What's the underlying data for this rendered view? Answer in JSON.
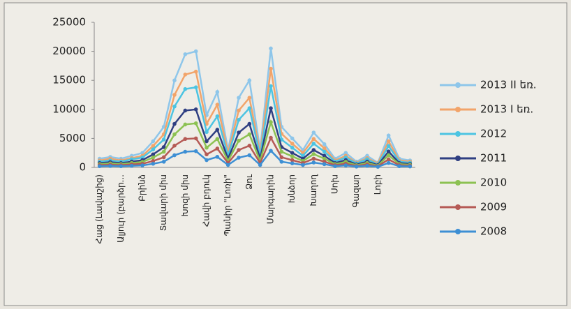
{
  "chart_data": {
    "type": "line",
    "categories": [
      "Հաց (Լավաշից)",
      null,
      "Ալյուր (բարձր...",
      null,
      "Բրինձ",
      null,
      "Տավարի միս",
      null,
      "Խոզի միս",
      null,
      "Հավի բդուկ",
      null,
      "Պանիր \"Լոռի\"",
      null,
      "Ձու",
      null,
      "Մարգարին",
      null,
      "Խնձոր",
      null,
      "Խաղող",
      null,
      "Սոխ",
      null,
      "Գազար",
      null,
      "Լոբի",
      null,
      null,
      null
    ],
    "series": [
      {
        "name": "2013 II եռ.",
        "color": "#8ec6ea",
        "values": [
          1500,
          1800,
          1500,
          2000,
          2500,
          4500,
          7000,
          15000,
          19500,
          20000,
          9000,
          13000,
          3000,
          12000,
          15000,
          3000,
          20500,
          7000,
          5000,
          3000,
          6000,
          4000,
          1500,
          2500,
          1000,
          2000,
          800,
          5500,
          1500,
          1200
        ]
      },
      {
        "name": "2013 I եռ.",
        "color": "#f2a46a",
        "values": [
          1200,
          1500,
          1200,
          1600,
          2000,
          3700,
          5700,
          12500,
          16000,
          16500,
          7500,
          10800,
          2500,
          9800,
          12000,
          2500,
          17000,
          5800,
          4100,
          2500,
          4900,
          3300,
          1200,
          2000,
          800,
          1600,
          700,
          4500,
          1200,
          1000
        ]
      },
      {
        "name": "2012",
        "color": "#4cc4e2",
        "values": [
          1000,
          1200,
          1000,
          1400,
          1700,
          3100,
          4800,
          10500,
          13500,
          13800,
          6100,
          8800,
          2000,
          8200,
          10200,
          2000,
          14000,
          4800,
          3400,
          2000,
          4100,
          2700,
          1000,
          1700,
          700,
          1400,
          500,
          3700,
          1000,
          800
        ]
      },
      {
        "name": "2011",
        "color": "#2f3f82",
        "values": [
          750,
          900,
          750,
          1000,
          1250,
          2250,
          3500,
          7500,
          9800,
          10000,
          4500,
          6500,
          1500,
          6000,
          7500,
          1500,
          10200,
          3500,
          2500,
          1500,
          3000,
          2000,
          750,
          1250,
          500,
          1000,
          400,
          2750,
          750,
          600
        ]
      },
      {
        "name": "2010",
        "color": "#8cc152",
        "values": [
          570,
          680,
          570,
          760,
          950,
          1700,
          2700,
          5700,
          7400,
          7600,
          3400,
          4900,
          1100,
          4600,
          5700,
          1100,
          7800,
          2700,
          1900,
          1100,
          2300,
          1500,
          570,
          950,
          380,
          760,
          300,
          2100,
          570,
          460
        ]
      },
      {
        "name": "2009",
        "color": "#b55a55",
        "values": [
          380,
          450,
          380,
          500,
          630,
          1100,
          1750,
          3750,
          4900,
          5000,
          2250,
          3250,
          750,
          3000,
          3750,
          750,
          5100,
          1750,
          1250,
          750,
          1500,
          1000,
          380,
          630,
          250,
          500,
          200,
          1380,
          380,
          300
        ]
      },
      {
        "name": "2008",
        "color": "#3d8fd4",
        "values": [
          210,
          250,
          210,
          280,
          350,
          630,
          980,
          2100,
          2700,
          2800,
          1260,
          1820,
          420,
          1680,
          2100,
          420,
          2870,
          980,
          700,
          420,
          840,
          560,
          210,
          350,
          140,
          280,
          110,
          770,
          210,
          170
        ]
      }
    ],
    "ylim": [
      0,
      25000
    ],
    "yticks": [
      0,
      5000,
      10000,
      15000,
      20000,
      25000
    ],
    "grid": false
  }
}
